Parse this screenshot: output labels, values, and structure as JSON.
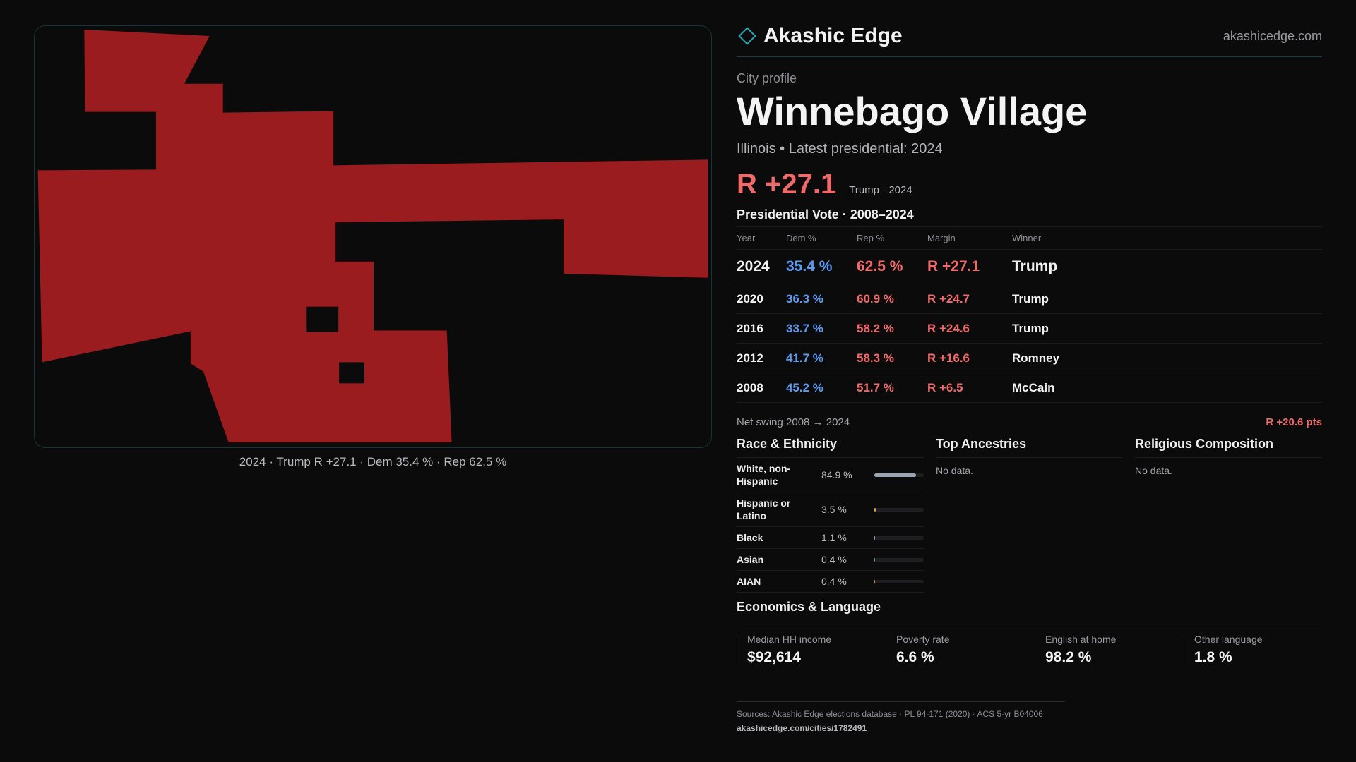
{
  "brand": {
    "name": "Akashic Edge",
    "url": "akashicedge.com"
  },
  "profile": {
    "kicker": "City profile",
    "city": "Winnebago Village",
    "subline": "Illinois • Latest presidential: 2024",
    "margin": "R +27.1",
    "margin_note": "Trump · 2024"
  },
  "map": {
    "caption": "2024 · Trump R +27.1 · Dem 35.4 % · Rep 62.5 %",
    "fill_color": "#9b1c1f"
  },
  "votes": {
    "title": "Presidential Vote · 2008–2024",
    "headers": [
      "Year",
      "Dem %",
      "Rep %",
      "Margin",
      "Winner"
    ],
    "rows": [
      {
        "year": "2024",
        "dem": "35.4 %",
        "rep": "62.5 %",
        "margin": "R +27.1",
        "winner": "Trump"
      },
      {
        "year": "2020",
        "dem": "36.3 %",
        "rep": "60.9 %",
        "margin": "R +24.7",
        "winner": "Trump"
      },
      {
        "year": "2016",
        "dem": "33.7 %",
        "rep": "58.2 %",
        "margin": "R +24.6",
        "winner": "Trump"
      },
      {
        "year": "2012",
        "dem": "41.7 %",
        "rep": "58.3 %",
        "margin": "R +16.6",
        "winner": "Romney"
      },
      {
        "year": "2008",
        "dem": "45.2 %",
        "rep": "51.7 %",
        "margin": "R +6.5",
        "winner": "McCain"
      }
    ]
  },
  "swing": {
    "label": "Net swing 2008 → 2024",
    "value": "R +20.6 pts"
  },
  "race": {
    "title": "Race & Ethnicity",
    "rows": [
      {
        "name": "White, non-Hispanic",
        "value": "84.9 %",
        "pct": 84.9,
        "color": "#9aa4b4"
      },
      {
        "name": "Hispanic or Latino",
        "value": "3.5 %",
        "pct": 3.5,
        "color": "#e0a030"
      },
      {
        "name": "Black",
        "value": "1.1 %",
        "pct": 1.1,
        "color": "#8a8ad8"
      },
      {
        "name": "Asian",
        "value": "0.4 %",
        "pct": 0.4,
        "color": "#3aa6a0"
      },
      {
        "name": "AIAN",
        "value": "0.4 %",
        "pct": 0.4,
        "color": "#d08040"
      }
    ]
  },
  "ancestries": {
    "title": "Top Ancestries",
    "empty": "No data."
  },
  "religion": {
    "title": "Religious Composition",
    "empty": "No data."
  },
  "economics": {
    "title": "Economics & Language",
    "cells": [
      {
        "label": "Median HH income",
        "value": "$92,614"
      },
      {
        "label": "Poverty rate",
        "value": "6.6 %"
      },
      {
        "label": "English at home",
        "value": "98.2 %"
      },
      {
        "label": "Other language",
        "value": "1.8 %"
      }
    ]
  },
  "sources": {
    "text": "Sources: Akashic Edge elections database · PL 94-171 (2020) · ACS 5-yr B04006",
    "url": "akashicedge.com/cities/1782491"
  }
}
